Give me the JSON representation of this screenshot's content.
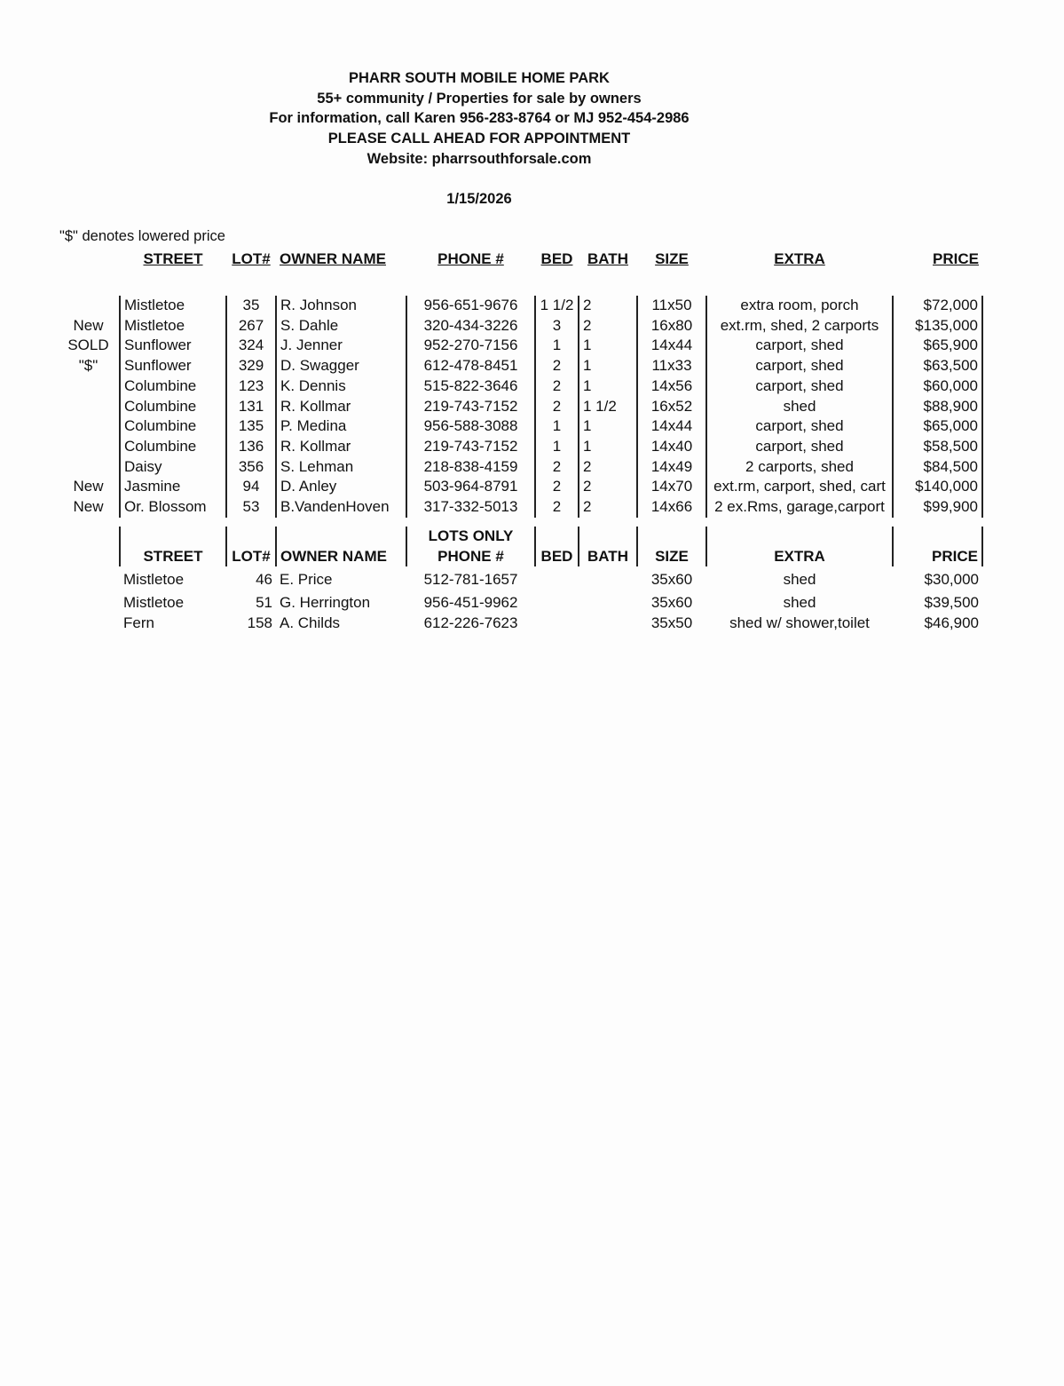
{
  "header": {
    "lines": [
      "PHARR SOUTH MOBILE HOME PARK",
      "55+ community / Properties for sale by owners",
      "For information, call Karen 956-283-8764 or MJ 952-454-2986",
      "PLEASE CALL AHEAD FOR APPOINTMENT",
      "Website: pharrsouthforsale.com"
    ],
    "date": "1/15/2026"
  },
  "note": "\"$\" denotes lowered price",
  "columns": [
    "STREET",
    "LOT#",
    "OWNER NAME",
    "PHONE #",
    "BED",
    "BATH",
    "SIZE",
    "EXTRA",
    "PRICE"
  ],
  "homes": [
    [
      "",
      "Mistletoe",
      "35",
      "R. Johnson",
      "956-651-9676",
      "1 1/2",
      "2",
      "11x50",
      "extra room, porch",
      "$72,000"
    ],
    [
      "New",
      "Mistletoe",
      "267",
      "S. Dahle",
      "320-434-3226",
      "3",
      "2",
      "16x80",
      "ext.rm, shed, 2 carports",
      "$135,000"
    ],
    [
      "SOLD",
      "Sunflower",
      "324",
      "J. Jenner",
      "952-270-7156",
      "1",
      "1",
      "14x44",
      "carport, shed",
      "$65,900"
    ],
    [
      "\"$\"",
      "Sunflower",
      "329",
      "D. Swagger",
      "612-478-8451",
      "2",
      "1",
      "11x33",
      "carport, shed",
      "$63,500"
    ],
    [
      "",
      "Columbine",
      "123",
      "K. Dennis",
      "515-822-3646",
      "2",
      "1",
      "14x56",
      "carport, shed",
      "$60,000"
    ],
    [
      "",
      "Columbine",
      "131",
      "R. Kollmar",
      "219-743-7152",
      "2",
      "1 1/2",
      "16x52",
      "shed",
      "$88,900"
    ],
    [
      "",
      "Columbine",
      "135",
      "P. Medina",
      "956-588-3088",
      "1",
      "1",
      "14x44",
      "carport, shed",
      "$65,000"
    ],
    [
      "",
      "Columbine",
      "136",
      "R. Kollmar",
      "219-743-7152",
      "1",
      "1",
      "14x40",
      "carport, shed",
      "$58,500"
    ],
    [
      "",
      "Daisy",
      "356",
      "S. Lehman",
      "218-838-4159",
      "2",
      "2",
      "14x49",
      "2 carports, shed",
      "$84,500"
    ],
    [
      "New",
      "Jasmine",
      "94",
      "D. Anley",
      "503-964-8791",
      "2",
      "2",
      "14x70",
      "ext.rm, carport, shed, cart",
      "$140,000"
    ],
    [
      "New",
      "Or. Blossom",
      "53",
      "B.VandenHoven",
      "317-332-5013",
      "2",
      "2",
      "14x66",
      "2 ex.Rms, garage,carport",
      "$99,900"
    ]
  ],
  "lots_title": "LOTS ONLY",
  "lots": [
    [
      "",
      "Mistletoe",
      "46",
      "E. Price",
      "512-781-1657",
      "",
      "",
      "35x60",
      "shed",
      "$30,000"
    ],
    [
      "",
      "Mistletoe",
      "51",
      "G. Herrington",
      "956-451-9962",
      "",
      "",
      "35x60",
      "shed",
      "$39,500"
    ],
    [
      "",
      "Fern",
      "158",
      "A. Childs",
      "612-226-7623",
      "",
      "",
      "35x50",
      "shed w/ shower,toilet",
      "$46,900"
    ]
  ]
}
